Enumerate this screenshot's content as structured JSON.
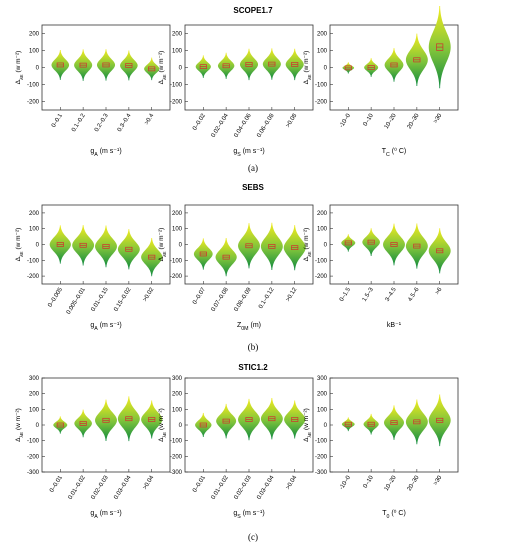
{
  "colors": {
    "violin_top": "#f2ec1e",
    "violin_bottom": "#0f8a3f",
    "box": "#d0312d",
    "axis": "#333333"
  },
  "chart_data": [
    {
      "type": "violin",
      "title": "SCOPE1.7",
      "caption": "(a)",
      "ylabel": "Δ_λE (w m⁻²)",
      "ylim": [
        -250,
        250
      ],
      "yticks": [
        -200,
        -100,
        0,
        100,
        200
      ],
      "panels": [
        {
          "xlabel": "g_A (m s⁻¹)",
          "categories": [
            "0–0.1",
            "0.1–0.2",
            "0.2–0.3",
            "0.3–0.4",
            ">0.4"
          ],
          "medians": [
            15,
            14,
            15,
            12,
            -8
          ],
          "spread": [
            40,
            42,
            42,
            40,
            30
          ]
        },
        {
          "xlabel": "g_S (m s⁻¹)",
          "categories": [
            "0–0.02",
            "0.02–0.04",
            "0.04–0.06",
            "0.06–0.08",
            ">0.08"
          ],
          "medians": [
            5,
            10,
            18,
            20,
            18
          ],
          "spread": [
            30,
            35,
            42,
            42,
            42
          ]
        },
        {
          "xlabel": "T_C (⁰ C)",
          "categories": [
            "-10–0",
            "0–10",
            "10–20",
            "20–30",
            ">30"
          ],
          "medians": [
            -2,
            0,
            15,
            45,
            120
          ],
          "spread": [
            15,
            25,
            45,
            70,
            110
          ]
        }
      ]
    },
    {
      "type": "violin",
      "title": "SEBS",
      "caption": "(b)",
      "ylabel": "Δ_λE (w m⁻²)",
      "ylim": [
        -250,
        250
      ],
      "yticks": [
        -200,
        -100,
        0,
        100,
        200
      ],
      "panels": [
        {
          "xlabel": "g_A (m s⁻¹)",
          "categories": [
            "0–0.005",
            "0.005–0.01",
            "0.01–0.15",
            "0.15–0.02",
            ">0.02"
          ],
          "medians": [
            0,
            -5,
            -12,
            -30,
            -80
          ],
          "spread": [
            55,
            58,
            60,
            58,
            55
          ]
        },
        {
          "xlabel": "Z_0M (m)",
          "categories": [
            "0–0.07",
            "0.07–0.08",
            "0.08–0.09",
            "0.1–0.12",
            ">0.12"
          ],
          "medians": [
            -60,
            -80,
            -8,
            -12,
            -20
          ],
          "spread": [
            45,
            55,
            65,
            68,
            65
          ]
        },
        {
          "xlabel": "kB⁻¹",
          "categories": [
            "0–1.5",
            "1.5–3",
            "3–4.5",
            "4.5–6",
            ">6"
          ],
          "medians": [
            10,
            15,
            0,
            -10,
            -40
          ],
          "spread": [
            25,
            40,
            60,
            65,
            65
          ]
        }
      ]
    },
    {
      "type": "violin",
      "title": "STIC1.2",
      "caption": "(c)",
      "ylabel": "Δ_λE (w m⁻²)",
      "ylim": [
        -300,
        300
      ],
      "yticks": [
        -300,
        -200,
        -100,
        0,
        100,
        200,
        300
      ],
      "panels": [
        {
          "xlabel": "g_A (m s⁻¹)",
          "categories": [
            "0–0.01",
            "0.01–0.02",
            "0.02–0.03",
            "0.03–0.04",
            ">0.04"
          ],
          "medians": [
            0,
            10,
            30,
            40,
            35
          ],
          "spread": [
            25,
            40,
            60,
            65,
            55
          ]
        },
        {
          "xlabel": "g_S (m s⁻¹)",
          "categories": [
            "0–0.01",
            "0.01–0.02",
            "0.02–0.03",
            "0.03–0.04",
            ">0.04"
          ],
          "medians": [
            0,
            25,
            35,
            40,
            35
          ],
          "spread": [
            35,
            50,
            60,
            60,
            55
          ]
        },
        {
          "xlabel": "T_0 (⁰ C)",
          "categories": [
            "-10–0",
            "0–10",
            "10–20",
            "20–30",
            ">30"
          ],
          "medians": [
            5,
            5,
            15,
            20,
            30
          ],
          "spread": [
            20,
            30,
            50,
            65,
            75
          ]
        }
      ]
    }
  ]
}
